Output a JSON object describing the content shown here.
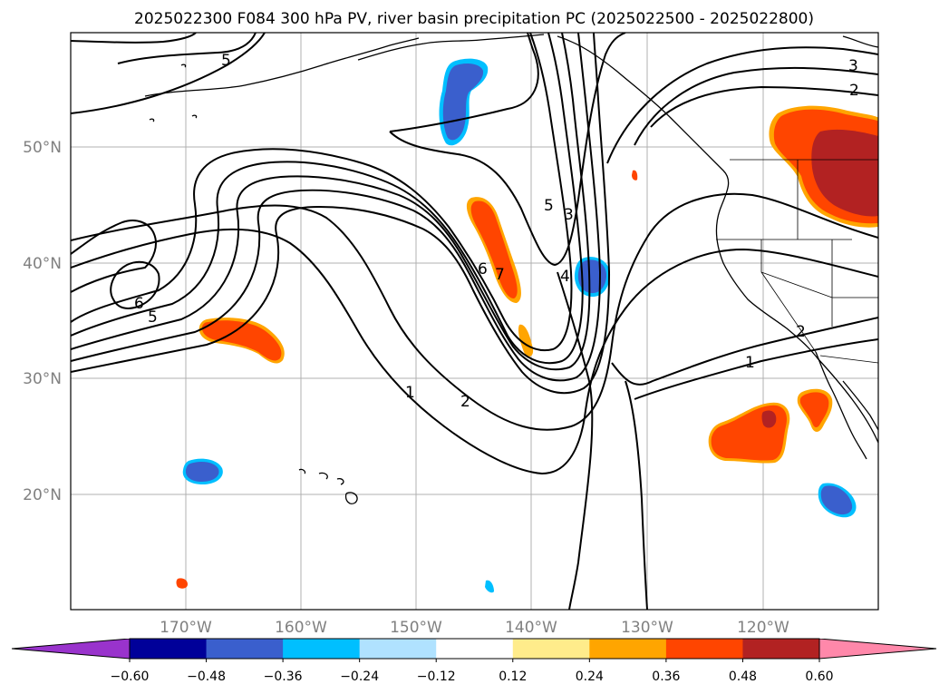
{
  "title": "2025022300 F084 300 hPa PV, river basin precipitation PC (2025022500 - 2025022800)",
  "map": {
    "lat_labels": [
      "50°N",
      "40°N",
      "30°N",
      "20°N"
    ],
    "lon_labels": [
      "170°W",
      "160°W",
      "150°W",
      "140°W",
      "130°W",
      "120°W"
    ],
    "contour_labels": [
      "5",
      "6",
      "5",
      "7",
      "6",
      "5",
      "4",
      "3",
      "3",
      "2",
      "2",
      "1",
      "1",
      "2"
    ]
  },
  "colorbar": {
    "colors": [
      "#9933cc",
      "#000099",
      "#3a5fcd",
      "#00bfff",
      "#b0e2ff",
      "#ffffff",
      "#ffec8b",
      "#ffa500",
      "#ff4500",
      "#b22222",
      "#ff88aa"
    ],
    "tick_labels": [
      "−0.60",
      "−0.48",
      "−0.36",
      "−0.24",
      "−0.12",
      "0.12",
      "0.24",
      "0.36",
      "0.48",
      "0.60"
    ]
  }
}
